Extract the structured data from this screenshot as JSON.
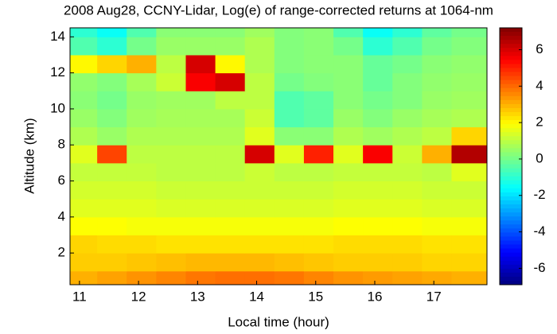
{
  "chart_data": {
    "type": "heatmap",
    "title": "2008 Aug28, CCNY-Lidar, Log(e) of range-corrected returns at 1064-nm",
    "x_label": "Local time (hour)",
    "y_label": "Altitude (km)",
    "xlim": [
      10.84,
      17.9
    ],
    "xticks": [
      11,
      12,
      13,
      14,
      15,
      16,
      17
    ],
    "ylim": [
      0.24,
      14.5
    ],
    "yticks": [
      2,
      4,
      6,
      8,
      10,
      12,
      14
    ],
    "colormap": "jet",
    "xbins": [
      10.84,
      11.3,
      11.8,
      12.3,
      12.8,
      13.3,
      13.8,
      14.3,
      14.8,
      15.3,
      15.8,
      16.3,
      16.8,
      17.3,
      17.9
    ],
    "ybins": [
      0.24,
      1,
      2,
      3,
      4,
      5,
      6,
      7,
      8,
      9,
      10,
      11,
      12,
      13,
      14,
      14.5
    ],
    "z": [
      [
        3,
        3.2,
        3.4,
        3.6,
        3.8,
        3.9,
        3.9,
        3.8,
        3.6,
        3.4,
        3.3,
        3.2,
        3.1,
        3
      ],
      [
        2.6,
        2.6,
        2.7,
        2.8,
        2.9,
        2.9,
        2.9,
        2.8,
        2.7,
        2.6,
        2.6,
        2.6,
        2.5,
        2.5
      ],
      [
        2.5,
        2.4,
        2.4,
        2.3,
        2.3,
        2.3,
        2.3,
        2.3,
        2.3,
        2.4,
        2.4,
        2.4,
        2.3,
        2.3
      ],
      [
        1.9,
        1.9,
        1.8,
        1.8,
        1.8,
        1.8,
        1.8,
        1.8,
        1.8,
        1.9,
        1.9,
        1.9,
        1.8,
        1.8
      ],
      [
        1.5,
        1.5,
        1.5,
        1.4,
        1.4,
        1.4,
        1.4,
        1.4,
        1.4,
        1.5,
        1.5,
        1.5,
        1.4,
        1.4
      ],
      [
        1.3,
        1.3,
        1.3,
        1.2,
        1.2,
        1.2,
        1.2,
        1.2,
        1.2,
        1.3,
        1.3,
        1.3,
        1.2,
        1.2
      ],
      [
        1.1,
        1.1,
        1.1,
        1,
        1,
        1,
        1.2,
        1,
        1,
        1.1,
        1.1,
        1.1,
        1,
        1.5
      ],
      [
        1.5,
        4.5,
        1,
        1,
        1,
        1,
        6,
        1.5,
        5,
        1.5,
        5.5,
        1.2,
        3,
        6.5
      ],
      [
        0.8,
        0.5,
        0.8,
        0.8,
        0.8,
        0.8,
        1.5,
        0.3,
        0.3,
        0.8,
        0.6,
        0.8,
        1,
        2.5
      ],
      [
        0.5,
        0.2,
        0.6,
        0.7,
        0.7,
        0.7,
        1.2,
        -0.5,
        -0.3,
        0.5,
        0.2,
        0.5,
        0.7,
        0.8
      ],
      [
        0.3,
        0,
        0.5,
        0.6,
        0.6,
        1,
        1,
        -0.5,
        -0.3,
        0.3,
        0,
        0.2,
        0.5,
        0.6
      ],
      [
        0.4,
        0.2,
        0.7,
        1.2,
        5.5,
        6,
        1,
        0,
        0.2,
        0.3,
        -0.2,
        0.2,
        0.4,
        0.5
      ],
      [
        2,
        2.5,
        3,
        1,
        6,
        2,
        0.8,
        0.2,
        0.3,
        0.3,
        -0.2,
        0,
        0.3,
        0.4
      ],
      [
        -0.5,
        -1,
        0,
        0.5,
        0.5,
        0.5,
        0.8,
        0.2,
        0.3,
        0,
        -1,
        -0.5,
        0,
        0.2
      ],
      [
        -1,
        -1.5,
        -0.5,
        0.3,
        0.3,
        0.3,
        0.6,
        0.2,
        0.3,
        -0.5,
        -1.5,
        -1,
        -0.3,
        0
      ]
    ],
    "colorbar": {
      "clim": [
        -6.9,
        7.2
      ],
      "ticks": [
        -6,
        -4,
        -2,
        0,
        2,
        4,
        6
      ]
    }
  }
}
